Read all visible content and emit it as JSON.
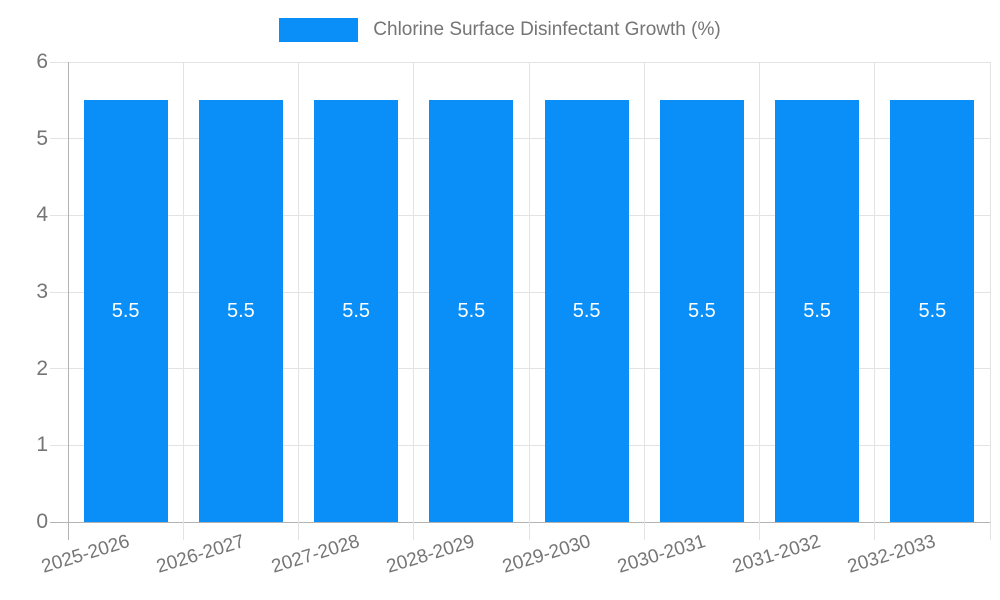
{
  "chart_data": {
    "type": "bar",
    "title": "Chlorine Surface Disinfectant Growth (%)",
    "categories": [
      "2025-2026",
      "2026-2027",
      "2027-2028",
      "2028-2029",
      "2029-2030",
      "2030-2031",
      "2031-2032",
      "2032-2033"
    ],
    "values": [
      5.5,
      5.5,
      5.5,
      5.5,
      5.5,
      5.5,
      5.5,
      5.5
    ],
    "xlabel": "",
    "ylabel": "",
    "ylim": [
      0,
      6
    ],
    "yticks": [
      0,
      1,
      2,
      3,
      4,
      5,
      6
    ],
    "grid": true,
    "legend_position": "top",
    "colors": {
      "bar": "#0a8ff8",
      "bar_value_label": "#ffffff",
      "text": "#757575",
      "gridline": "#e3e3e3",
      "axis": "#b3b3b3",
      "background": "#ffffff"
    }
  }
}
